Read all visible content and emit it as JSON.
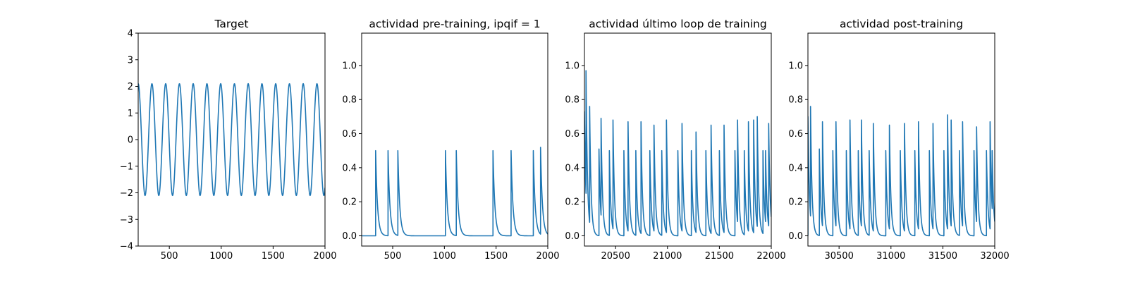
{
  "colors": {
    "series": "#1f77b4",
    "frame": "#000000",
    "background": "#ffffff"
  },
  "chart_data": [
    {
      "type": "line",
      "title": "Target",
      "xlim": [
        200,
        2000
      ],
      "ylim": [
        -4,
        4
      ],
      "xticks": [
        500,
        1000,
        1500,
        2000
      ],
      "yticks": [
        -4,
        -3,
        -2,
        -1,
        0,
        1,
        2,
        3,
        4
      ],
      "series": [
        {
          "kind": "sine",
          "amplitude": 2.1,
          "period": 132.5,
          "phase_x": 200,
          "x_start": 200,
          "x_end": 2000
        }
      ]
    },
    {
      "type": "line",
      "title": "actividad pre-training, ipqif = 1",
      "xlim": [
        200,
        2000
      ],
      "ylim": [
        -0.06,
        1.19
      ],
      "xticks": [
        500,
        1000,
        1500,
        2000
      ],
      "yticks": [
        0.0,
        0.2,
        0.4,
        0.6,
        0.8,
        1.0
      ],
      "series": [
        {
          "kind": "spikes",
          "x_start": 200,
          "x_end": 2000,
          "tau": 18,
          "spikes": [
            [
              335,
              0.5
            ],
            [
              455,
              0.5
            ],
            [
              550,
              0.5
            ],
            [
              1010,
              0.5
            ],
            [
              1115,
              0.5
            ],
            [
              1470,
              0.5
            ],
            [
              1645,
              0.5
            ],
            [
              1860,
              0.5
            ],
            [
              1930,
              0.52
            ]
          ]
        }
      ]
    },
    {
      "type": "line",
      "title": "actividad último loop de training",
      "xlim": [
        20200,
        22000
      ],
      "ylim": [
        -0.06,
        1.19
      ],
      "xticks": [
        20500,
        21000,
        21500,
        22000
      ],
      "yticks": [
        0.0,
        0.2,
        0.4,
        0.6,
        0.8,
        1.0
      ],
      "series": [
        {
          "kind": "spikes",
          "x_start": 20200,
          "x_end": 22000,
          "tau": 14,
          "spikes": [
            [
              20200,
              0.73
            ],
            [
              20215,
              0.97
            ],
            [
              20250,
              0.76
            ],
            [
              20340,
              0.51
            ],
            [
              20360,
              0.69
            ],
            [
              20440,
              0.5
            ],
            [
              20475,
              0.68
            ],
            [
              20580,
              0.5
            ],
            [
              20620,
              0.67
            ],
            [
              20695,
              0.5
            ],
            [
              20745,
              0.67
            ],
            [
              20830,
              0.5
            ],
            [
              20870,
              0.65
            ],
            [
              20945,
              0.5
            ],
            [
              20990,
              0.68
            ],
            [
              21100,
              0.5
            ],
            [
              21140,
              0.66
            ],
            [
              21230,
              0.5
            ],
            [
              21275,
              0.61
            ],
            [
              21370,
              0.5
            ],
            [
              21420,
              0.65
            ],
            [
              21500,
              0.5
            ],
            [
              21545,
              0.65
            ],
            [
              21650,
              0.5
            ],
            [
              21675,
              0.68
            ],
            [
              21740,
              0.5
            ],
            [
              21780,
              0.67
            ],
            [
              21830,
              0.68
            ],
            [
              21865,
              0.7
            ],
            [
              21920,
              0.5
            ],
            [
              21945,
              0.5
            ],
            [
              21975,
              0.66
            ]
          ]
        }
      ]
    },
    {
      "type": "line",
      "title": "actividad post-training",
      "xlim": [
        30200,
        32000
      ],
      "ylim": [
        -0.06,
        1.19
      ],
      "xticks": [
        30500,
        31000,
        31500,
        32000
      ],
      "yticks": [
        0.0,
        0.2,
        0.4,
        0.6,
        0.8,
        1.0
      ],
      "series": [
        {
          "kind": "spikes",
          "x_start": 30200,
          "x_end": 32000,
          "tau": 14,
          "spikes": [
            [
              30200,
              0.7
            ],
            [
              30225,
              0.76
            ],
            [
              30310,
              0.51
            ],
            [
              30340,
              0.67
            ],
            [
              30440,
              0.5
            ],
            [
              30470,
              0.67
            ],
            [
              30570,
              0.5
            ],
            [
              30605,
              0.68
            ],
            [
              30685,
              0.5
            ],
            [
              30715,
              0.68
            ],
            [
              30790,
              0.5
            ],
            [
              30830,
              0.66
            ],
            [
              30950,
              0.5
            ],
            [
              30985,
              0.65
            ],
            [
              31090,
              0.5
            ],
            [
              31130,
              0.66
            ],
            [
              31230,
              0.5
            ],
            [
              31265,
              0.67
            ],
            [
              31370,
              0.5
            ],
            [
              31405,
              0.66
            ],
            [
              31510,
              0.5
            ],
            [
              31545,
              0.71
            ],
            [
              31580,
              0.68
            ],
            [
              31660,
              0.5
            ],
            [
              31690,
              0.67
            ],
            [
              31800,
              0.5
            ],
            [
              31825,
              0.64
            ],
            [
              31920,
              0.5
            ],
            [
              31955,
              0.67
            ],
            [
              31975,
              0.5
            ]
          ]
        }
      ]
    }
  ]
}
